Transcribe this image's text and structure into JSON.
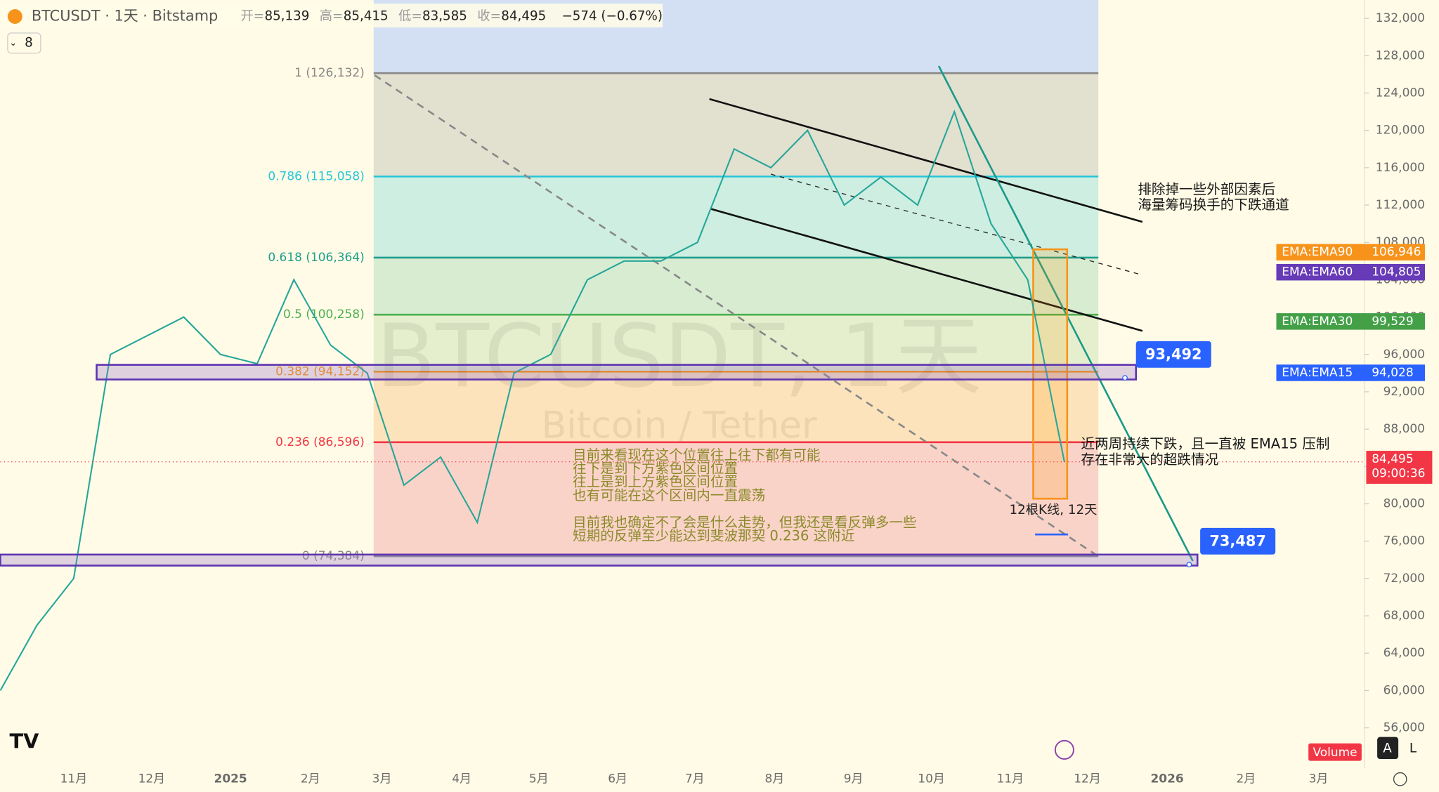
{
  "header": {
    "symbol": "BTCUSDT · 1天 · Bitstamp",
    "fields": [
      {
        "label": "开=",
        "value": "85,139"
      },
      {
        "label": "高=",
        "value": "85,415"
      },
      {
        "label": "低=",
        "value": "83,585"
      },
      {
        "label": "收=",
        "value": "84,495"
      }
    ],
    "change": "−574 (−0.67%)",
    "indicator_count": "8"
  },
  "chart_data": {
    "type": "line",
    "watermark": "BTCUSDT, 1天",
    "watermark_sub": "Bitcoin / Tether",
    "ylim": [
      52000,
      134000
    ],
    "yticks": [
      {
        "value": 132000,
        "label": "132,000"
      },
      {
        "value": 128000,
        "label": "128,000"
      },
      {
        "value": 124000,
        "label": "124,000"
      },
      {
        "value": 120000,
        "label": "120,000"
      },
      {
        "value": 116000,
        "label": "116,000"
      },
      {
        "value": 112000,
        "label": "112,000"
      },
      {
        "value": 108000,
        "label": "108,000"
      },
      {
        "value": 104000,
        "label": "104,000"
      },
      {
        "value": 100000,
        "label": "100,000"
      },
      {
        "value": 96000,
        "label": "96,000"
      },
      {
        "value": 92000,
        "label": "92,000"
      },
      {
        "value": 88000,
        "label": "88,000"
      },
      {
        "value": 84000,
        "label": "84,000"
      },
      {
        "value": 80000,
        "label": "80,000"
      },
      {
        "value": 76000,
        "label": "76,000"
      },
      {
        "value": 72000,
        "label": "72,000"
      },
      {
        "value": 68000,
        "label": "68,000"
      },
      {
        "value": 64000,
        "label": "64,000"
      },
      {
        "value": 60000,
        "label": "60,000"
      },
      {
        "value": 56000,
        "label": "56,000"
      }
    ],
    "time_labels": [
      "11月",
      "12月",
      "2025",
      "2月",
      "3月",
      "4月",
      "5月",
      "6月",
      "7月",
      "8月",
      "9月",
      "10月",
      "11月",
      "12月",
      "2026",
      "2月",
      "3月"
    ],
    "series": [
      {
        "name": "BTCUSDT",
        "color": "#26a69a",
        "values": [
          60000,
          67000,
          72000,
          96000,
          98000,
          100000,
          96000,
          95000,
          104000,
          97000,
          94000,
          82000,
          85000,
          78000,
          94000,
          96000,
          104000,
          106000,
          106000,
          108000,
          118000,
          116000,
          120000,
          112000,
          115000,
          112000,
          122000,
          110000,
          104000,
          84495
        ]
      }
    ],
    "fib_levels": [
      {
        "value": 126132,
        "label": "1 (126,132)",
        "color": "#888888"
      },
      {
        "value": 115058,
        "label": "0.786 (115,058)",
        "color": "#26c6da"
      },
      {
        "value": 106364,
        "label": "0.618 (106,364)",
        "color": "#1e9e8e"
      },
      {
        "value": 100258,
        "label": "0.5 (100,258)",
        "color": "#4caf50"
      },
      {
        "value": 94152,
        "label": "0.382 (94,152)",
        "color": "#ff9800"
      },
      {
        "value": 86596,
        "label": "0.236 (86,596)",
        "color": "#f23645"
      },
      {
        "value": 74384,
        "label": "0 (74,384)",
        "color": "#888888"
      }
    ],
    "price_tags": [
      {
        "value": 93492,
        "label": "93,492"
      },
      {
        "value": 73487,
        "label": "73,487"
      }
    ],
    "ema_labels": [
      {
        "name": "EMA:EMA90",
        "value": 106946,
        "label": "106,946",
        "color": "#f7931a"
      },
      {
        "name": "EMA:EMA60",
        "value": 104805,
        "label": "104,805",
        "color": "#673ab7"
      },
      {
        "name": "EMA:EMA30",
        "value": 99529,
        "label": "99,529",
        "color": "#43a047"
      },
      {
        "name": "EMA:EMA15",
        "value": 94028,
        "label": "94,028",
        "color": "#2962ff"
      }
    ],
    "last_price": {
      "value": 84495,
      "label": "84,495",
      "countdown": "09:00:36"
    },
    "annotations": {
      "channel": [
        "排除掉一些外部因素后",
        "海量筹码换手的下跌通道"
      ],
      "pressure": [
        "近两周持续下跌，且一直被 EMA15 压制",
        "存在非常大的超跌情况"
      ],
      "center": [
        "目前来看现在这个位置往上往下都有可能",
        "往下是到下方紫色区间位置",
        "往上是到上方紫色区间位置",
        "也有可能在这个区间内一直震荡",
        "",
        "目前我也确定不了会是什么走势，但我还是看反弹多一些",
        "短期的反弹至少能达到斐波那契 0.236 这附近"
      ],
      "bars": "12根K线, 12天"
    },
    "volume_tag": "Volume",
    "buttons": [
      "A",
      "L"
    ]
  }
}
